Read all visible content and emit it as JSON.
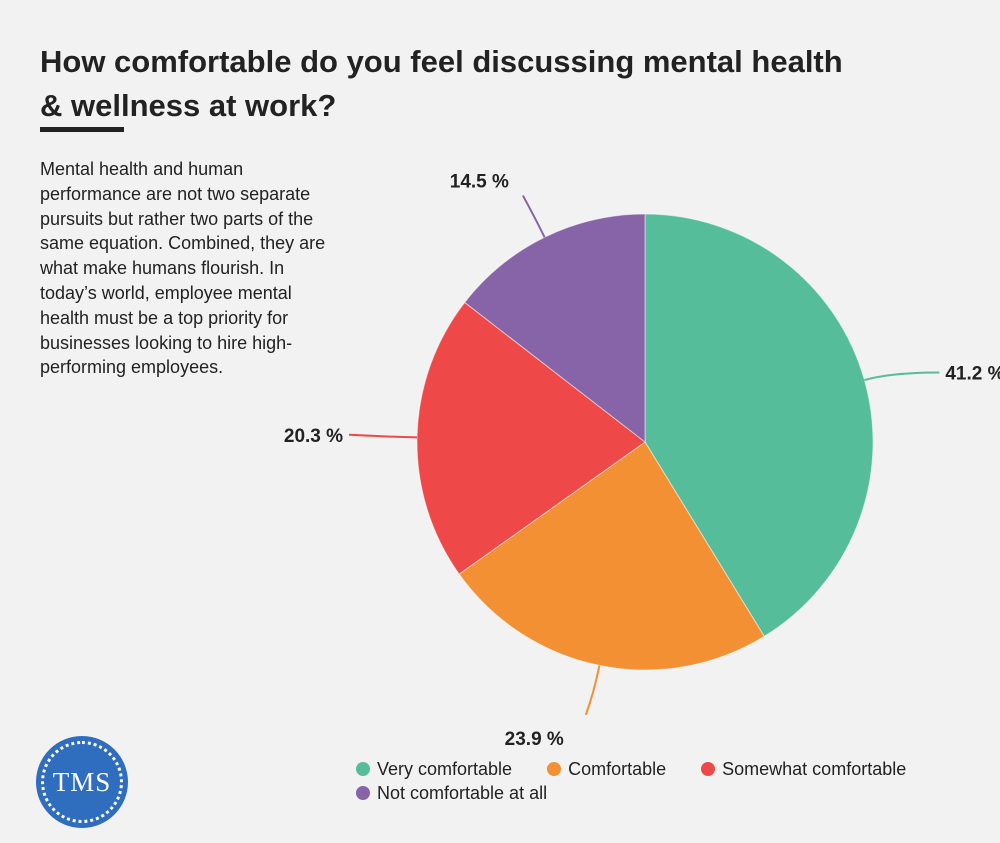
{
  "header": {
    "title": "How comfortable do you feel discussing mental health & wellness at work?",
    "description": "Mental health and human performance are not two separate pursuits but rather two parts of the same equation. Combined, they are what make humans flourish. In today’s world, employee mental health must be a top priority for businesses looking to hire high-performing employees."
  },
  "logo": {
    "text": "TMS",
    "color": "#2f6dbf"
  },
  "chart_data": {
    "type": "pie",
    "title": "How comfortable do you feel discussing mental health & wellness at work?",
    "unit": "%",
    "legend_position": "bottom",
    "slices": [
      {
        "name": "Very comfortable",
        "value": 41.2,
        "label": "41.2 %",
        "color": "#55bd9a"
      },
      {
        "name": "Comfortable",
        "value": 23.9,
        "label": "23.9 %",
        "color": "#f39034"
      },
      {
        "name": "Somewhat comfortable",
        "value": 20.3,
        "label": "20.3 %",
        "color": "#ef4848"
      },
      {
        "name": "Not comfortable at all",
        "value": 14.5,
        "label": "14.5 %",
        "color": "#8764a8"
      }
    ]
  }
}
